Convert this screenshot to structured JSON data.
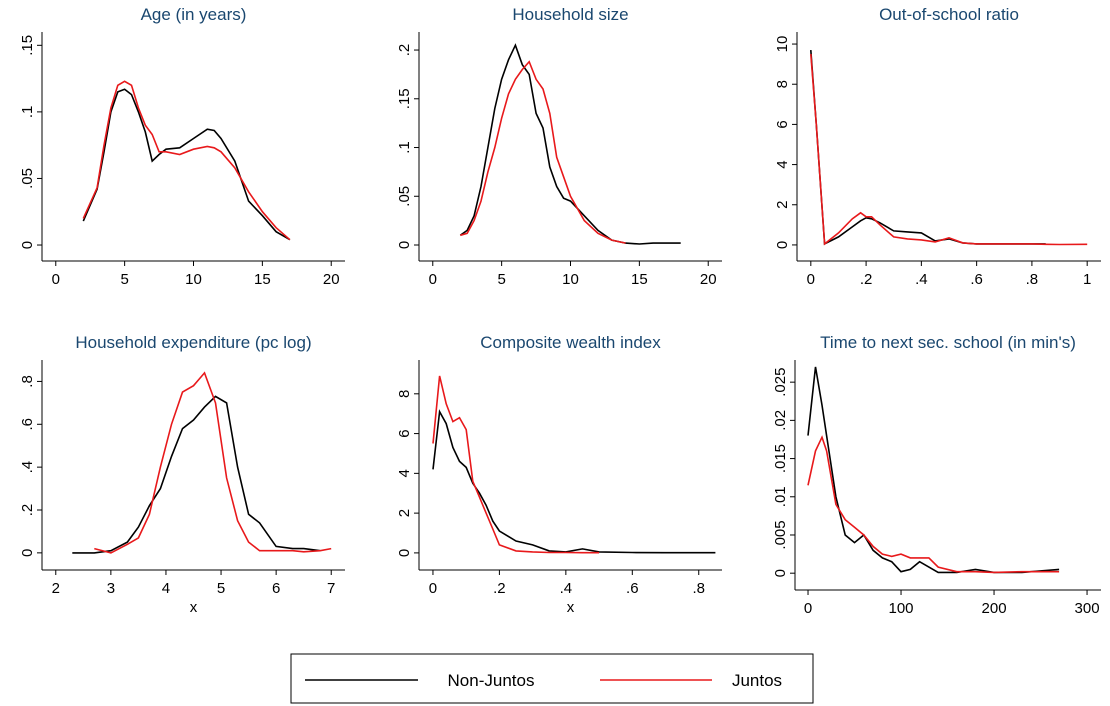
{
  "chart_data": [
    {
      "type": "line",
      "title": "Age (in years)",
      "x": [
        2,
        3,
        3.5,
        4,
        4.5,
        5,
        5.5,
        6,
        6.5,
        7,
        7.5,
        8,
        9,
        10,
        11,
        11.5,
        12,
        13,
        14,
        15,
        16,
        17
      ],
      "series": [
        {
          "name": "Non-Juntos",
          "color": "#000000",
          "values": [
            0.018,
            0.042,
            0.07,
            0.1,
            0.115,
            0.117,
            0.113,
            0.1,
            0.085,
            0.063,
            0.068,
            0.072,
            0.073,
            0.08,
            0.087,
            0.086,
            0.08,
            0.063,
            0.033,
            0.022,
            0.01,
            0.004
          ]
        },
        {
          "name": "Juntos",
          "color": "#e8191b",
          "values": [
            0.02,
            0.043,
            0.075,
            0.103,
            0.12,
            0.123,
            0.12,
            0.103,
            0.09,
            0.083,
            0.07,
            0.07,
            0.068,
            0.072,
            0.074,
            0.073,
            0.07,
            0.058,
            0.04,
            0.025,
            0.013,
            0.004
          ]
        }
      ],
      "xlim": [
        -1,
        21
      ],
      "ylim": [
        -0.012,
        0.16
      ],
      "xticks": [
        0,
        5,
        10,
        15,
        20
      ],
      "yticks": [
        0,
        {
          "value": 0.05,
          "label": ".05"
        },
        {
          "value": 0.1,
          "label": ".1"
        },
        {
          "value": 0.15,
          "label": ".15"
        }
      ]
    },
    {
      "type": "line",
      "title": "Household size",
      "x": [
        2,
        2.5,
        3,
        3.5,
        4,
        4.5,
        5,
        5.5,
        6,
        6.5,
        7,
        7.5,
        8,
        8.5,
        9,
        9.5,
        10,
        11,
        12,
        13,
        14,
        15,
        16,
        17,
        18
      ],
      "series": [
        {
          "name": "Non-Juntos",
          "color": "#000000",
          "values": [
            0.01,
            0.015,
            0.03,
            0.06,
            0.1,
            0.14,
            0.17,
            0.19,
            0.205,
            0.185,
            0.175,
            0.135,
            0.12,
            0.08,
            0.06,
            0.048,
            0.045,
            0.03,
            0.015,
            0.005,
            0.002,
            0.001,
            0.002,
            0.002,
            0.002
          ]
        },
        {
          "name": "Juntos",
          "color": "#e8191b",
          "values": [
            0.01,
            0.012,
            0.025,
            0.045,
            0.075,
            0.1,
            0.13,
            0.155,
            0.17,
            0.18,
            0.188,
            0.17,
            0.16,
            0.135,
            0.09,
            0.07,
            0.05,
            0.025,
            0.012,
            0.005,
            0.002,
            null,
            null,
            null,
            null
          ]
        }
      ],
      "xlim": [
        -1,
        21
      ],
      "ylim": [
        -0.0164,
        0.2185
      ],
      "xticks": [
        0,
        5,
        10,
        15,
        20
      ],
      "yticks": [
        0,
        {
          "value": 0.05,
          "label": ".05"
        },
        {
          "value": 0.1,
          "label": ".1"
        },
        {
          "value": 0.15,
          "label": ".15"
        },
        {
          "value": 0.2,
          "label": ".2"
        }
      ]
    },
    {
      "type": "line",
      "title": "Out-of-school ratio",
      "x": [
        0,
        0.02,
        0.05,
        0.1,
        0.15,
        0.18,
        0.2,
        0.22,
        0.25,
        0.3,
        0.35,
        0.4,
        0.45,
        0.5,
        0.55,
        0.6,
        0.7,
        0.8,
        0.85,
        0.9,
        1
      ],
      "series": [
        {
          "name": "Non-Juntos",
          "color": "#000000",
          "values": [
            9.7,
            6,
            0.05,
            0.4,
            0.9,
            1.2,
            1.35,
            1.3,
            1.1,
            0.7,
            0.65,
            0.6,
            0.2,
            0.3,
            0.1,
            0.05,
            0.05,
            0.05,
            0.05,
            null,
            null
          ]
        },
        {
          "name": "Juntos",
          "color": "#e8191b",
          "values": [
            9.5,
            6,
            0.05,
            0.6,
            1.3,
            1.6,
            1.4,
            1.4,
            1.0,
            0.4,
            0.3,
            0.25,
            0.15,
            0.35,
            0.1,
            0.05,
            0.05,
            0.05,
            0.03,
            0.02,
            0.03
          ]
        }
      ],
      "xlim": [
        -0.05,
        1.05
      ],
      "ylim": [
        -0.8,
        10.6
      ],
      "xticks": [
        0,
        {
          "value": 0.2,
          "label": ".2"
        },
        {
          "value": 0.4,
          "label": ".4"
        },
        {
          "value": 0.6,
          "label": ".6"
        },
        {
          "value": 0.8,
          "label": ".8"
        },
        1
      ],
      "yticks": [
        0,
        2,
        4,
        6,
        8,
        10
      ]
    },
    {
      "type": "line",
      "title": "Household expenditure (pc log)",
      "x_label": "x",
      "x": [
        2.3,
        2.7,
        3,
        3.3,
        3.5,
        3.7,
        3.9,
        4.1,
        4.3,
        4.5,
        4.7,
        4.9,
        5.1,
        5.3,
        5.5,
        5.7,
        6,
        6.3,
        6.5,
        6.8,
        7
      ],
      "series": [
        {
          "name": "Non-Juntos",
          "color": "#000000",
          "values": [
            0,
            0,
            0.01,
            0.05,
            0.12,
            0.22,
            0.3,
            0.45,
            0.58,
            0.62,
            0.68,
            0.73,
            0.7,
            0.4,
            0.18,
            0.14,
            0.03,
            0.02,
            0.02,
            0.01,
            null
          ]
        },
        {
          "name": "Juntos",
          "color": "#e8191b",
          "values": [
            null,
            0.02,
            0,
            0.04,
            0.07,
            0.18,
            0.4,
            0.6,
            0.75,
            0.78,
            0.84,
            0.7,
            0.35,
            0.15,
            0.05,
            0.01,
            0.01,
            0.01,
            0.005,
            0.01,
            0.02
          ]
        }
      ],
      "xlim": [
        1.75,
        7.25
      ],
      "ylim": [
        -0.08,
        0.9
      ],
      "xticks": [
        2,
        3,
        4,
        5,
        6,
        7
      ],
      "yticks": [
        0,
        {
          "value": 0.2,
          "label": ".2"
        },
        {
          "value": 0.4,
          "label": ".4"
        },
        {
          "value": 0.6,
          "label": ".6"
        },
        {
          "value": 0.8,
          "label": ".8"
        }
      ]
    },
    {
      "type": "line",
      "title": "Composite wealth index",
      "x_label": "x",
      "x": [
        0,
        0.02,
        0.04,
        0.06,
        0.08,
        0.1,
        0.12,
        0.14,
        0.16,
        0.18,
        0.2,
        0.25,
        0.3,
        0.35,
        0.4,
        0.45,
        0.5,
        0.6,
        0.7,
        0.85
      ],
      "series": [
        {
          "name": "Non-Juntos",
          "color": "#000000",
          "values": [
            4.2,
            7.1,
            6.5,
            5.3,
            4.6,
            4.3,
            3.5,
            3,
            2.4,
            1.6,
            1.1,
            0.6,
            0.4,
            0.1,
            0.05,
            0.2,
            0.05,
            0.02,
            0.01,
            0.01
          ]
        },
        {
          "name": "Juntos",
          "color": "#e8191b",
          "values": [
            5.5,
            8.9,
            7.5,
            6.6,
            6.8,
            6.2,
            3.6,
            2.8,
            2.0,
            1.2,
            0.4,
            0.1,
            0.05,
            0.02,
            0.02,
            0.01,
            0.01,
            null,
            null,
            null
          ]
        }
      ],
      "xlim": [
        -0.042,
        0.87
      ],
      "ylim": [
        -0.86,
        9.7
      ],
      "xticks": [
        0,
        {
          "value": 0.2,
          "label": ".2"
        },
        {
          "value": 0.4,
          "label": ".4"
        },
        {
          "value": 0.6,
          "label": ".6"
        },
        {
          "value": 0.8,
          "label": ".8"
        }
      ],
      "yticks": [
        0,
        2,
        4,
        6,
        8
      ]
    },
    {
      "type": "line",
      "title": "Time to next sec. school (in min's)",
      "x": [
        0,
        8,
        15,
        20,
        30,
        40,
        50,
        60,
        70,
        80,
        90,
        100,
        110,
        120,
        130,
        140,
        160,
        180,
        200,
        230,
        270
      ],
      "series": [
        {
          "name": "Non-Juntos",
          "color": "#000000",
          "values": [
            0.018,
            0.027,
            0.022,
            0.018,
            0.01,
            0.005,
            0.004,
            0.005,
            0.003,
            0.002,
            0.0015,
            0.0002,
            0.0005,
            0.0015,
            0.0008,
            0.0001,
            0.0001,
            0.0005,
            0.0001,
            0.0001,
            0.0005
          ]
        },
        {
          "name": "Juntos",
          "color": "#e8191b",
          "values": [
            0.0115,
            0.016,
            0.0178,
            0.016,
            0.009,
            0.007,
            0.006,
            0.005,
            0.0035,
            0.0025,
            0.0022,
            0.0025,
            0.002,
            0.002,
            0.002,
            0.0008,
            0.0002,
            0.0002,
            0.0001,
            0.0002,
            0.0002
          ]
        }
      ],
      "xlim": [
        -14,
        315
      ],
      "ylim": [
        -0.0022,
        0.0279
      ],
      "xticks": [
        0,
        100,
        200,
        300
      ],
      "yticks": [
        0,
        {
          "value": 0.005,
          "label": ".005"
        },
        {
          "value": 0.01,
          "label": ".01"
        },
        {
          "value": 0.015,
          "label": ".015"
        },
        {
          "value": 0.02,
          "label": ".02"
        },
        {
          "value": 0.025,
          "label": ".025"
        }
      ]
    }
  ]
}
